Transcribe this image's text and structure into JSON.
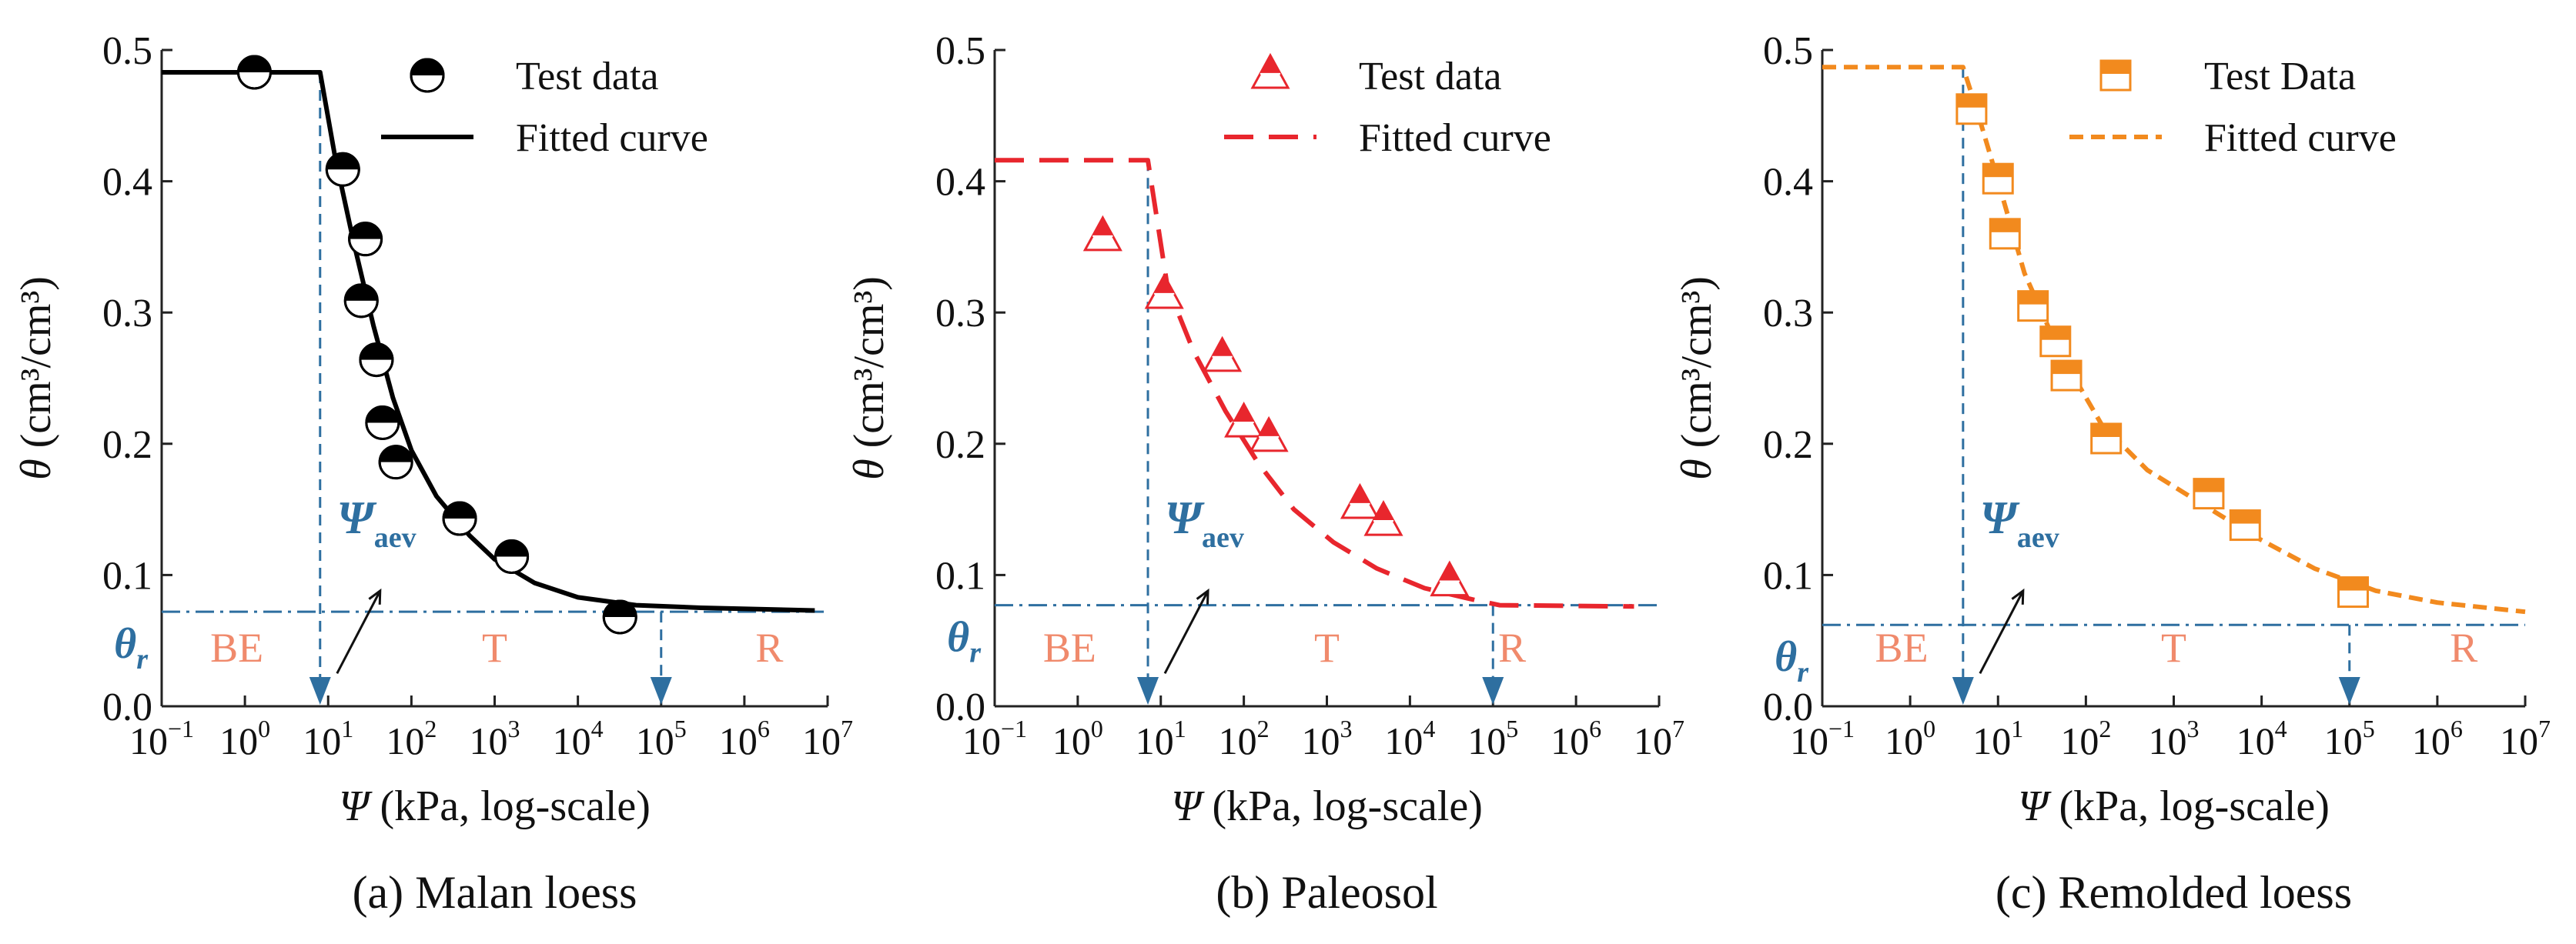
{
  "chart_data": [
    {
      "type": "scatter",
      "panel_id": "a",
      "caption": "(a)  Malan loess",
      "xlabel_symbol": "Ψ",
      "xlabel_text": " (kPa, log-scale)",
      "ylabel_symbol": "θ",
      "ylabel_text": " (cm³/cm³)",
      "x_scale": "log",
      "xlim_exp": [
        -1,
        7
      ],
      "ylim": [
        0,
        0.5
      ],
      "yticks": [
        0.0,
        0.1,
        0.2,
        0.3,
        0.4,
        0.5
      ],
      "ytick_labels": [
        "0.0",
        "0.1",
        "0.2",
        "0.3",
        "0.4",
        "0.5"
      ],
      "xtick_exps": [
        -1,
        0,
        1,
        2,
        3,
        4,
        5,
        6,
        7
      ],
      "xtick_base": "10",
      "xtick_labels": [
        "−1",
        "0",
        "1",
        "2",
        "3",
        "4",
        "5",
        "6",
        "7"
      ],
      "legend": {
        "position": "top-right",
        "test_label": "Test data",
        "fit_label": "Fitted curve"
      },
      "marker": "half-circle",
      "color": "#000000",
      "fit_style": "solid",
      "test_data": [
        {
          "x": 1.3,
          "y": 0.483
        },
        {
          "x": 15,
          "y": 0.409
        },
        {
          "x": 28,
          "y": 0.356
        },
        {
          "x": 25,
          "y": 0.309
        },
        {
          "x": 38,
          "y": 0.264
        },
        {
          "x": 45,
          "y": 0.216
        },
        {
          "x": 65,
          "y": 0.186
        },
        {
          "x": 380,
          "y": 0.143
        },
        {
          "x": 1600,
          "y": 0.114
        },
        {
          "x": 32000,
          "y": 0.068
        }
      ],
      "fit_curve": [
        {
          "x": 0.1,
          "y": 0.483
        },
        {
          "x": 8,
          "y": 0.483
        },
        {
          "x": 12,
          "y": 0.42
        },
        {
          "x": 20,
          "y": 0.355
        },
        {
          "x": 35,
          "y": 0.29
        },
        {
          "x": 60,
          "y": 0.235
        },
        {
          "x": 100,
          "y": 0.195
        },
        {
          "x": 200,
          "y": 0.16
        },
        {
          "x": 500,
          "y": 0.13
        },
        {
          "x": 1000,
          "y": 0.112
        },
        {
          "x": 3000,
          "y": 0.094
        },
        {
          "x": 10000,
          "y": 0.083
        },
        {
          "x": 50000,
          "y": 0.077
        },
        {
          "x": 300000,
          "y": 0.075
        },
        {
          "x": 7000000,
          "y": 0.073
        }
      ],
      "theta_r": 0.072,
      "psi_aev": 8,
      "psi_res": 100000,
      "theta_r_label": "θ",
      "theta_r_sub": "r",
      "psi_aev_label": "Ψ",
      "psi_aev_sub": "aev",
      "region_labels": [
        "BE",
        "T",
        "R"
      ],
      "region_x": [
        0.8,
        1000,
        2000000
      ]
    },
    {
      "type": "scatter",
      "panel_id": "b",
      "caption": "(b) Paleosol",
      "xlabel_symbol": "Ψ",
      "xlabel_text": " (kPa, log-scale)",
      "ylabel_symbol": "θ",
      "ylabel_text": " (cm³/cm³)",
      "x_scale": "log",
      "xlim_exp": [
        -1,
        7
      ],
      "ylim": [
        0,
        0.5
      ],
      "yticks": [
        0.0,
        0.1,
        0.2,
        0.3,
        0.4,
        0.5
      ],
      "ytick_labels": [
        "0.0",
        "0.1",
        "0.2",
        "0.3",
        "0.4",
        "0.5"
      ],
      "xtick_exps": [
        -1,
        0,
        1,
        2,
        3,
        4,
        5,
        6,
        7
      ],
      "xtick_base": "10",
      "xtick_labels": [
        "−1",
        "0",
        "1",
        "2",
        "3",
        "4",
        "5",
        "6",
        "7"
      ],
      "legend": {
        "position": "top-right",
        "test_label": "Test data",
        "fit_label": "Fitted curve"
      },
      "marker": "half-triangle",
      "color": "#e8262d",
      "fit_style": "dashed",
      "test_data": [
        {
          "x": 2,
          "y": 0.357
        },
        {
          "x": 11,
          "y": 0.313
        },
        {
          "x": 55,
          "y": 0.265
        },
        {
          "x": 100,
          "y": 0.215
        },
        {
          "x": 200,
          "y": 0.204
        },
        {
          "x": 2500,
          "y": 0.153
        },
        {
          "x": 4800,
          "y": 0.14
        },
        {
          "x": 30000,
          "y": 0.094
        }
      ],
      "fit_curve": [
        {
          "x": 0.1,
          "y": 0.416
        },
        {
          "x": 7,
          "y": 0.416
        },
        {
          "x": 12,
          "y": 0.32
        },
        {
          "x": 25,
          "y": 0.27
        },
        {
          "x": 60,
          "y": 0.225
        },
        {
          "x": 150,
          "y": 0.185
        },
        {
          "x": 400,
          "y": 0.15
        },
        {
          "x": 1200,
          "y": 0.125
        },
        {
          "x": 4000,
          "y": 0.105
        },
        {
          "x": 15000,
          "y": 0.09
        },
        {
          "x": 60000,
          "y": 0.081
        },
        {
          "x": 120000,
          "y": 0.077
        },
        {
          "x": 5000000,
          "y": 0.076
        }
      ],
      "theta_r": 0.077,
      "psi_aev": 7,
      "psi_res": 100000,
      "theta_r_label": "θ",
      "theta_r_sub": "r",
      "psi_aev_label": "Ψ",
      "psi_aev_sub": "aev",
      "region_labels": [
        "BE",
        "T",
        "R"
      ],
      "region_x": [
        0.8,
        1000,
        170000
      ]
    },
    {
      "type": "scatter",
      "panel_id": "c",
      "caption": "(c) Remolded loess",
      "xlabel_symbol": "Ψ",
      "xlabel_text": " (kPa, log-scale)",
      "ylabel_symbol": "θ",
      "ylabel_text": " (cm³/cm³)",
      "x_scale": "log",
      "xlim_exp": [
        -1,
        7
      ],
      "ylim": [
        0,
        0.5
      ],
      "yticks": [
        0.0,
        0.1,
        0.2,
        0.3,
        0.4,
        0.5
      ],
      "ytick_labels": [
        "0.0",
        "0.1",
        "0.2",
        "0.3",
        "0.4",
        "0.5"
      ],
      "xtick_exps": [
        -1,
        0,
        1,
        2,
        3,
        4,
        5,
        6,
        7
      ],
      "xtick_base": "10",
      "xtick_labels": [
        "−1",
        "0",
        "1",
        "2",
        "3",
        "4",
        "5",
        "6",
        "7"
      ],
      "legend": {
        "position": "top-right",
        "test_label": "Test Data",
        "fit_label": "Fitted curve"
      },
      "marker": "half-square",
      "color": "#f28a1e",
      "fit_style": "dashed-fine",
      "test_data": [
        {
          "x": 5,
          "y": 0.455
        },
        {
          "x": 10,
          "y": 0.402
        },
        {
          "x": 12,
          "y": 0.36
        },
        {
          "x": 25,
          "y": 0.305
        },
        {
          "x": 45,
          "y": 0.278
        },
        {
          "x": 60,
          "y": 0.252
        },
        {
          "x": 170,
          "y": 0.204
        },
        {
          "x": 2500,
          "y": 0.162
        },
        {
          "x": 6500,
          "y": 0.138
        },
        {
          "x": 110000,
          "y": 0.087
        }
      ],
      "fit_curve": [
        {
          "x": 0.1,
          "y": 0.487
        },
        {
          "x": 4,
          "y": 0.487
        },
        {
          "x": 6,
          "y": 0.45
        },
        {
          "x": 10,
          "y": 0.4
        },
        {
          "x": 20,
          "y": 0.33
        },
        {
          "x": 50,
          "y": 0.27
        },
        {
          "x": 150,
          "y": 0.215
        },
        {
          "x": 500,
          "y": 0.18
        },
        {
          "x": 2000,
          "y": 0.155
        },
        {
          "x": 8000,
          "y": 0.13
        },
        {
          "x": 40000,
          "y": 0.105
        },
        {
          "x": 200000,
          "y": 0.088
        },
        {
          "x": 1000000,
          "y": 0.079
        },
        {
          "x": 10000000,
          "y": 0.072
        }
      ],
      "theta_r": 0.062,
      "psi_aev": 4,
      "psi_res": 100000,
      "theta_r_label": "θ",
      "theta_r_sub": "r",
      "psi_aev_label": "Ψ",
      "psi_aev_sub": "aev",
      "region_labels": [
        "BE",
        "T",
        "R"
      ],
      "region_x": [
        0.8,
        1000,
        2000000
      ]
    }
  ],
  "colors": {
    "reference": "#2e6fa0",
    "region_text": "#f08a6c",
    "axis": "#222222"
  }
}
